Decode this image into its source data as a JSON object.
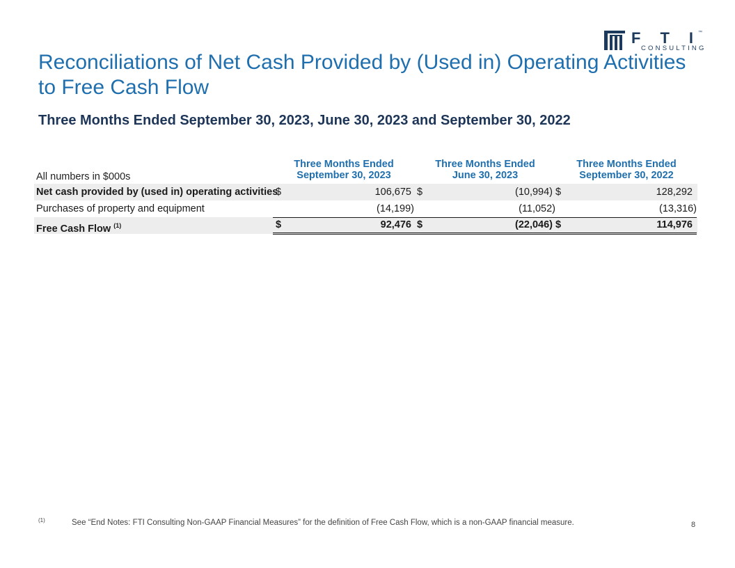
{
  "brand": {
    "letters": "FTI",
    "tm": "™",
    "sub": "CONSULTING",
    "color": "#1d3a5c"
  },
  "title": "Reconciliations of Net Cash Provided by (Used in) Operating Activities to Free Cash Flow",
  "subtitle": "Three Months Ended September 30, 2023, June 30, 2023 and September 30, 2022",
  "table": {
    "units_label": "All numbers in $000s",
    "columns": [
      {
        "line1": "Three Months Ended",
        "line2": "September 30, 2023"
      },
      {
        "line1": "Three Months Ended",
        "line2": "June 30, 2023"
      },
      {
        "line1": "Three Months Ended",
        "line2": "September 30, 2022"
      }
    ],
    "rows": [
      {
        "label": "Net cash provided by (used in) operating activities",
        "cells": [
          {
            "currency": "$",
            "value": "106,675"
          },
          {
            "currency": "$",
            "value": "(10,994)"
          },
          {
            "currency": "$",
            "value": "128,292"
          }
        ]
      },
      {
        "label": "Purchases of property and equipment",
        "cells": [
          {
            "currency": "",
            "value": "(14,199)"
          },
          {
            "currency": "",
            "value": "(11,052)"
          },
          {
            "currency": "",
            "value": "(13,316)"
          }
        ]
      },
      {
        "label": "Free Cash Flow",
        "label_sup": "(1)",
        "cells": [
          {
            "currency": "$",
            "value": "92,476"
          },
          {
            "currency": "$",
            "value": "(22,046)"
          },
          {
            "currency": "$",
            "value": "114,976"
          }
        ]
      }
    ]
  },
  "footnote": {
    "marker": "(1)",
    "text": "See “End Notes: FTI Consulting Non-GAAP Financial Measures” for the definition of Free Cash Flow, which is a non-GAAP financial measure."
  },
  "page_number": "8"
}
